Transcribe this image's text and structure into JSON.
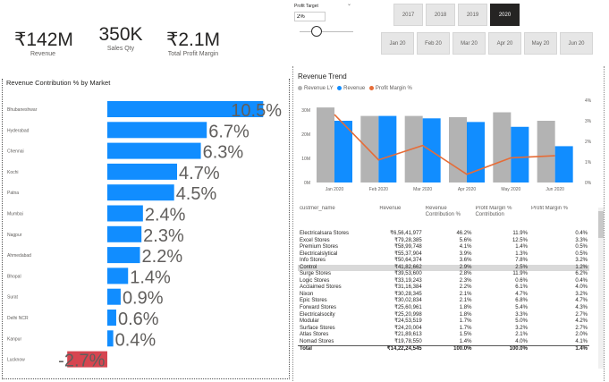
{
  "kpis": [
    {
      "value": "₹142M",
      "label": "Revenue"
    },
    {
      "value": "350K",
      "label": "Sales Qty"
    },
    {
      "value": "₹2.1M",
      "label": "Total Profit Margin"
    }
  ],
  "profit_target": {
    "label": "Profit Target",
    "value": "2%"
  },
  "years": [
    {
      "label": "2017",
      "selected": false
    },
    {
      "label": "2018",
      "selected": false
    },
    {
      "label": "2019",
      "selected": false
    },
    {
      "label": "2020",
      "selected": true
    }
  ],
  "months": [
    "Jan 20",
    "Feb 20",
    "Mar 20",
    "Apr 20",
    "May 20",
    "Jun 20"
  ],
  "market_chart": {
    "title": "Revenue Contribution % by Market",
    "chart_data": {
      "type": "bar",
      "categories": [
        "Bhubaneshwar",
        "Hyderabad",
        "Chennai",
        "Kochi",
        "Patna",
        "Mumbai",
        "Nagpur",
        "Ahmedabad",
        "Bhopal",
        "Surat",
        "Delhi NCR",
        "Kanpur",
        "Lucknow"
      ],
      "values": [
        10.5,
        6.7,
        6.3,
        4.7,
        4.5,
        2.4,
        2.3,
        2.2,
        1.4,
        0.9,
        0.6,
        0.4,
        -2.7
      ],
      "labels": [
        "10.5%",
        "6.7%",
        "6.3%",
        "4.7%",
        "4.5%",
        "2.4%",
        "2.3%",
        "2.2%",
        "1.4%",
        "0.9%",
        "0.6%",
        "0.4%",
        "-2.7%"
      ],
      "colors": {
        "positive": "#118dff",
        "negative": "#d64550"
      }
    }
  },
  "trend_chart": {
    "title": "Revenue Trend",
    "legend": [
      "Revenue LY",
      "Revenue",
      "Profit Margin %"
    ],
    "colors": {
      "ly": "#b3b3b3",
      "rev": "#118dff",
      "pm": "#e66c37"
    },
    "chart_data": {
      "type": "bar",
      "categories": [
        "Jan 2020",
        "Feb 2020",
        "Mar 2020",
        "Apr 2020",
        "May 2020",
        "Jun 2020"
      ],
      "series": [
        {
          "name": "Revenue LY",
          "values": [
            31,
            27.5,
            27.5,
            27,
            29,
            25.5
          ]
        },
        {
          "name": "Revenue",
          "values": [
            25.5,
            27.5,
            26.5,
            25,
            23,
            15
          ]
        },
        {
          "name": "Profit Margin %",
          "values": [
            3.3,
            1.1,
            1.8,
            0.4,
            1.2,
            1.3
          ]
        }
      ],
      "y_ticks": [
        "30M",
        "20M",
        "10M",
        "0M"
      ],
      "y2_ticks": [
        "4%",
        "3%",
        "2%",
        "1%",
        "0%"
      ],
      "ylim": [
        0,
        34
      ],
      "y2lim": [
        0,
        4
      ]
    }
  },
  "table": {
    "headers": [
      "custmer_name",
      "Revenue",
      "Revenue Contribution %",
      "Profit Margin % Contribution",
      "Profit Margin %"
    ],
    "rows": [
      [
        "Electricalsara Stores",
        "₹6,56,41,977",
        "46.2%",
        "11.9%",
        "0.4%"
      ],
      [
        "Excel Stores",
        "₹79,28,385",
        "5.6%",
        "12.5%",
        "3.3%"
      ],
      [
        "Premium Stores",
        "₹58,99,748",
        "4.1%",
        "1.4%",
        "0.5%"
      ],
      [
        "Electricalslytical",
        "₹55,37,904",
        "3.9%",
        "1.3%",
        "0.5%"
      ],
      [
        "Info Stores",
        "₹50,64,374",
        "3.6%",
        "7.8%",
        "3.2%"
      ],
      [
        "Control",
        "₹41,82,662",
        "2.9%",
        "2.5%",
        "1.2%"
      ],
      [
        "Surge Stores",
        "₹39,53,600",
        "2.8%",
        "11.9%",
        "6.2%"
      ],
      [
        "Logic Stores",
        "₹33,19,243",
        "2.3%",
        "0.6%",
        "0.4%"
      ],
      [
        "Acclaimed Stores",
        "₹31,16,384",
        "2.2%",
        "6.1%",
        "4.0%"
      ],
      [
        "Nixon",
        "₹30,28,345",
        "2.1%",
        "4.7%",
        "3.2%"
      ],
      [
        "Epic Stores",
        "₹30,02,834",
        "2.1%",
        "6.8%",
        "4.7%"
      ],
      [
        "Forward Stores",
        "₹25,60,961",
        "1.8%",
        "5.4%",
        "4.3%"
      ],
      [
        "Electricalsocity",
        "₹25,20,998",
        "1.8%",
        "3.3%",
        "2.7%"
      ],
      [
        "Modular",
        "₹24,53,519",
        "1.7%",
        "5.0%",
        "4.2%"
      ],
      [
        "Surface Stores",
        "₹24,20,004",
        "1.7%",
        "3.2%",
        "2.7%"
      ],
      [
        "Atlas Stores",
        "₹21,89,613",
        "1.5%",
        "2.1%",
        "2.0%"
      ],
      [
        "Nomad Stores",
        "₹19,78,550",
        "1.4%",
        "4.0%",
        "4.1%"
      ]
    ],
    "total": [
      "Total",
      "₹14,22,24,545",
      "100.0%",
      "100.0%",
      "1.4%"
    ],
    "highlight_row": 5
  }
}
